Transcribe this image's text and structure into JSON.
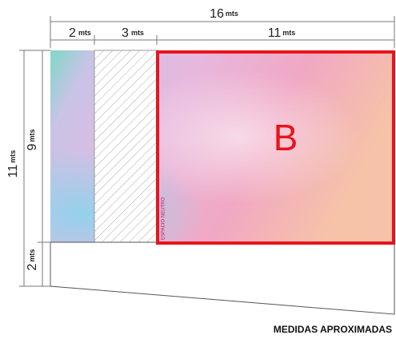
{
  "dimensions": {
    "top_total": {
      "value": "16",
      "unit": "mts"
    },
    "top_segments": [
      {
        "value": "2",
        "unit": "mts"
      },
      {
        "value": "3",
        "unit": "mts"
      },
      {
        "value": "11",
        "unit": "mts"
      }
    ],
    "left_total": {
      "value": "11",
      "unit": "mts"
    },
    "left_segments": [
      {
        "value": "9",
        "unit": "mts"
      },
      {
        "value": "2",
        "unit": "mts"
      }
    ]
  },
  "zone": {
    "label": "B",
    "neutral_label": "ESPACIO NEUTRO"
  },
  "footer": "MEDIDAS APROXIMADAS"
}
